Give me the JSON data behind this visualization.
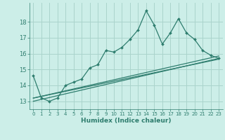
{
  "xlabel": "Humidex (Indice chaleur)",
  "background_color": "#cceee8",
  "grid_color": "#aad4cc",
  "line_color": "#2e7d6e",
  "xlim": [
    -0.5,
    23.5
  ],
  "ylim": [
    12.5,
    19.2
  ],
  "yticks": [
    13,
    14,
    15,
    16,
    17,
    18
  ],
  "xticks": [
    0,
    1,
    2,
    3,
    4,
    5,
    6,
    7,
    8,
    9,
    10,
    11,
    12,
    13,
    14,
    15,
    16,
    17,
    18,
    19,
    20,
    21,
    22,
    23
  ],
  "series1_x": [
    0,
    1,
    2,
    3,
    4,
    5,
    6,
    7,
    8,
    9,
    10,
    11,
    12,
    13,
    14,
    15,
    16,
    17,
    18,
    19,
    20,
    21,
    22,
    23
  ],
  "series1_y": [
    14.6,
    13.2,
    13.0,
    13.2,
    14.0,
    14.2,
    14.4,
    15.1,
    15.3,
    16.2,
    16.1,
    16.4,
    16.9,
    17.5,
    18.7,
    17.8,
    16.6,
    17.3,
    18.2,
    17.3,
    16.9,
    16.2,
    15.9,
    15.7
  ],
  "series2_x": [
    0,
    23
  ],
  "series2_y": [
    13.2,
    15.85
  ],
  "series3_x": [
    0,
    23
  ],
  "series3_y": [
    13.0,
    15.7
  ],
  "series4_x": [
    0,
    23
  ],
  "series4_y": [
    13.2,
    15.65
  ]
}
